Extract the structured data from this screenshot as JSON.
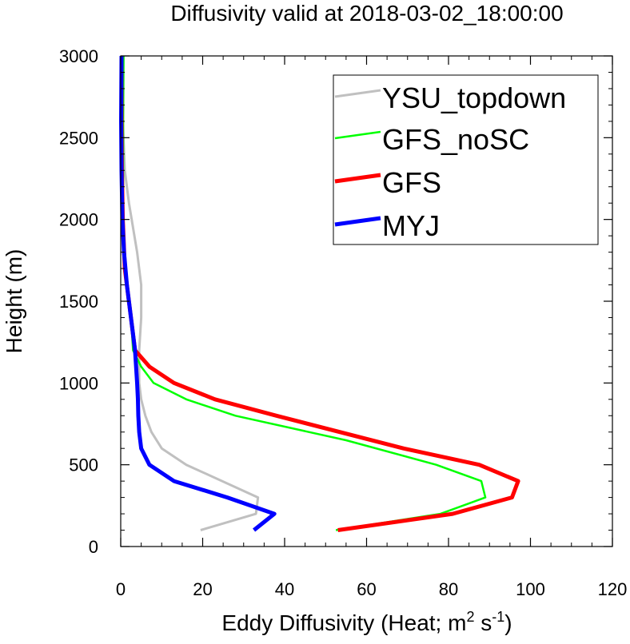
{
  "chart_data": {
    "type": "line",
    "title": "Diffusivity valid at 2018-03-02_18:00:00",
    "xlabel": "Eddy Diffusivity (Heat; m",
    "xlabel_sup1": "2",
    "xlabel_mid": " s",
    "xlabel_sup2": "-1",
    "xlabel_end": ")",
    "ylabel": "Height (m)",
    "xlim": [
      0,
      120
    ],
    "ylim": [
      0,
      3000
    ],
    "xticks": [
      "0",
      "20",
      "40",
      "60",
      "80",
      "100",
      "120"
    ],
    "yticks": [
      "0",
      "500",
      "1000",
      "1500",
      "2000",
      "2500",
      "3000"
    ],
    "grid": false,
    "legend_position": "top-right",
    "series": [
      {
        "name": "YSU_topdown",
        "color": "#c0c0c0",
        "points": [
          [
            19.5,
            100
          ],
          [
            33,
            200
          ],
          [
            33.5,
            300
          ],
          [
            16,
            500
          ],
          [
            10,
            600
          ],
          [
            7.5,
            700
          ],
          [
            6,
            800
          ],
          [
            5,
            900
          ],
          [
            4.5,
            1000
          ],
          [
            4.5,
            1100
          ],
          [
            4.5,
            1200
          ],
          [
            5,
            1400
          ],
          [
            5,
            1600
          ],
          [
            4,
            1800
          ],
          [
            2,
            2100
          ],
          [
            1,
            2300
          ],
          [
            0.5,
            2600
          ],
          [
            0.3,
            3000
          ]
        ]
      },
      {
        "name": "GFS_noSC",
        "color": "#00ff00",
        "points": [
          [
            52.5,
            100
          ],
          [
            78,
            200
          ],
          [
            89,
            300
          ],
          [
            88,
            400
          ],
          [
            77,
            500
          ],
          [
            55,
            650
          ],
          [
            28,
            800
          ],
          [
            16,
            900
          ],
          [
            8,
            1000
          ],
          [
            5,
            1100
          ],
          [
            3,
            1200
          ],
          [
            2.5,
            1400
          ],
          [
            1,
            1700
          ],
          [
            0.6,
            2000
          ],
          [
            0.6,
            2300
          ],
          [
            0.6,
            2600
          ],
          [
            0.7,
            3000
          ]
        ]
      },
      {
        "name": "GFS",
        "color": "#ff0000",
        "points": [
          [
            53,
            100
          ],
          [
            81,
            200
          ],
          [
            95.5,
            300
          ],
          [
            97,
            400
          ],
          [
            87.5,
            500
          ],
          [
            69,
            600
          ],
          [
            38,
            800
          ],
          [
            23,
            900
          ],
          [
            13,
            1000
          ],
          [
            7,
            1100
          ],
          [
            3.5,
            1200
          ],
          [
            2.5,
            1400
          ],
          [
            1,
            1700
          ],
          [
            0.5,
            2000
          ],
          [
            0.3,
            2300
          ],
          [
            0.2,
            2600
          ],
          [
            0.2,
            3000
          ]
        ]
      },
      {
        "name": "MYJ",
        "color": "#0000ff",
        "points": [
          [
            32.5,
            100
          ],
          [
            37.5,
            200
          ],
          [
            26,
            300
          ],
          [
            13,
            400
          ],
          [
            7,
            500
          ],
          [
            5,
            600
          ],
          [
            4.5,
            700
          ],
          [
            4.3,
            800
          ],
          [
            4.2,
            900
          ],
          [
            4,
            1000
          ],
          [
            3.5,
            1200
          ],
          [
            2.5,
            1400
          ],
          [
            1.5,
            1600
          ],
          [
            0.8,
            1800
          ],
          [
            0.4,
            2000
          ],
          [
            0.2,
            2300
          ],
          [
            0.1,
            2600
          ],
          [
            0.2,
            3000
          ]
        ]
      }
    ]
  }
}
